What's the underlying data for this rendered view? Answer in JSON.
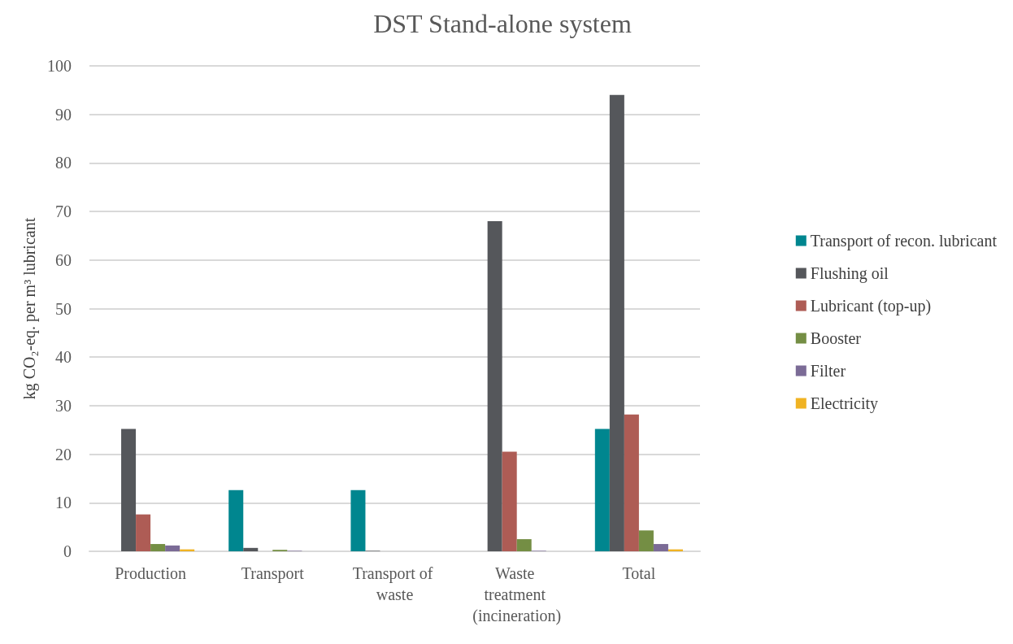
{
  "chart_data": {
    "type": "bar",
    "title": "DST Stand-alone system",
    "ylabel": "kg CO₂-eq. per m³ lubricant",
    "categories": [
      "Production",
      "Transport",
      "Transport of waste",
      "Waste treatment (incineration)",
      "Total"
    ],
    "series": [
      {
        "name": "Transport of recon. lubricant",
        "color": "#00868f",
        "values": [
          0,
          12.6,
          12.6,
          0,
          25.2
        ]
      },
      {
        "name": "Flushing oil",
        "color": "#55575b",
        "values": [
          25.2,
          0.7,
          0.1,
          68,
          94
        ]
      },
      {
        "name": "Lubricant (top-up)",
        "color": "#ae5c55",
        "values": [
          7.6,
          0,
          0,
          20.5,
          28.2
        ]
      },
      {
        "name": "Booster",
        "color": "#748e44",
        "values": [
          1.5,
          0.3,
          0,
          2.5,
          4.3
        ]
      },
      {
        "name": "Filter",
        "color": "#7b6b96",
        "values": [
          1.2,
          0.1,
          0,
          0.1,
          1.5
        ]
      },
      {
        "name": "Electricity",
        "color": "#f0b323",
        "values": [
          0.4,
          0,
          0,
          0,
          0.4
        ]
      }
    ],
    "ylim": [
      0,
      100
    ],
    "yticks": [
      0,
      10,
      20,
      30,
      40,
      50,
      60,
      70,
      80,
      90,
      100
    ],
    "grid": true,
    "legend": "right"
  }
}
